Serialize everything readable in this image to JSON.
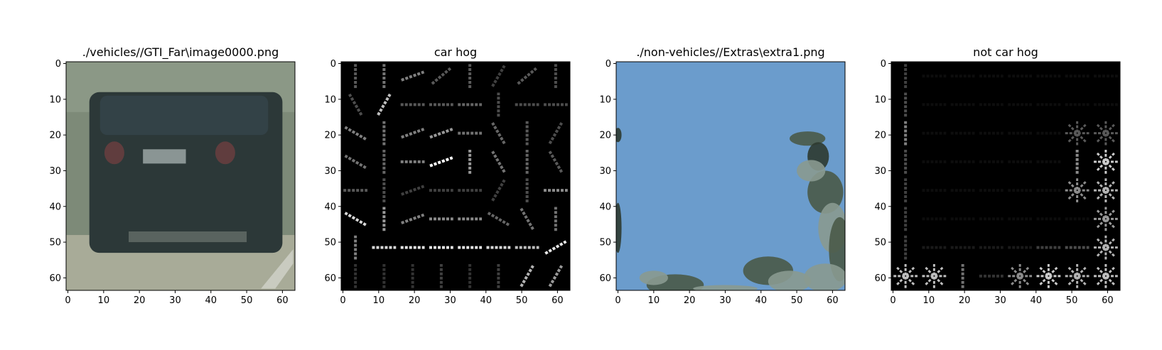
{
  "chart_data": [
    {
      "type": "heatmap",
      "subtype": "image",
      "title": "./vehicles//GTI_Far\\image0000.png",
      "xlim": [
        0,
        63
      ],
      "ylim": [
        63,
        0
      ],
      "xticks": [
        "0",
        "10",
        "20",
        "30",
        "40",
        "50",
        "60"
      ],
      "yticks": [
        "0",
        "10",
        "20",
        "30",
        "40",
        "50",
        "60"
      ],
      "image": {
        "kind": "photo-car",
        "colors": {
          "background": "#7d8a78",
          "sky": "#8f9b8a",
          "body": "#2c3838",
          "window": "#334247",
          "taillight": "#6a3e40",
          "plate": "#8a9594",
          "road": "#a8ab98",
          "shadow": "#3a4545"
        }
      }
    },
    {
      "type": "heatmap",
      "subtype": "hog",
      "title": "car hog",
      "xlim": [
        0,
        63
      ],
      "ylim": [
        63,
        0
      ],
      "xticks": [
        "0",
        "10",
        "20",
        "30",
        "40",
        "50",
        "60"
      ],
      "yticks": [
        "0",
        "10",
        "20",
        "30",
        "40",
        "50",
        "60"
      ],
      "cell_size": 8,
      "cells": [
        [
          [
            90,
            0.35
          ],
          [
            90,
            0.45
          ],
          [
            20,
            0.5
          ],
          [
            40,
            0.35
          ],
          [
            90,
            0.35
          ],
          [
            60,
            0.25
          ],
          [
            40,
            0.35
          ],
          [
            90,
            0.3
          ]
        ],
        [
          [
            120,
            0.3
          ],
          [
            60,
            0.75
          ],
          [
            0,
            0.35
          ],
          [
            0,
            0.35
          ],
          [
            0,
            0.4
          ],
          [
            90,
            0.3
          ],
          [
            0,
            0.3
          ],
          [
            0,
            0.3
          ]
        ],
        [
          [
            150,
            0.5
          ],
          [
            90,
            0.45
          ],
          [
            20,
            0.5
          ],
          [
            20,
            0.6
          ],
          [
            0,
            0.45
          ],
          [
            120,
            0.4
          ],
          [
            90,
            0.35
          ],
          [
            60,
            0.3
          ]
        ],
        [
          [
            150,
            0.45
          ],
          [
            90,
            0.4
          ],
          [
            0,
            0.5
          ],
          [
            20,
            1.0
          ],
          [
            90,
            0.6
          ],
          [
            120,
            0.45
          ],
          [
            90,
            0.4
          ],
          [
            120,
            0.35
          ]
        ],
        [
          [
            0,
            0.35
          ],
          [
            90,
            0.3
          ],
          [
            20,
            0.25
          ],
          [
            0,
            0.25
          ],
          [
            0,
            0.25
          ],
          [
            60,
            0.25
          ],
          [
            90,
            0.3
          ],
          [
            0,
            0.55
          ]
        ],
        [
          [
            150,
            0.85
          ],
          [
            90,
            0.6
          ],
          [
            20,
            0.5
          ],
          [
            0,
            0.55
          ],
          [
            0,
            0.55
          ],
          [
            150,
            0.4
          ],
          [
            120,
            0.45
          ],
          [
            90,
            0.45
          ]
        ],
        [
          [
            90,
            0.5
          ],
          [
            0,
            0.85
          ],
          [
            0,
            0.9
          ],
          [
            0,
            0.9
          ],
          [
            0,
            0.9
          ],
          [
            0,
            0.85
          ],
          [
            0,
            0.75
          ],
          [
            30,
            0.9
          ]
        ],
        [
          [
            90,
            0.2
          ],
          [
            90,
            0.2
          ],
          [
            90,
            0.2
          ],
          [
            90,
            0.25
          ],
          [
            90,
            0.2
          ],
          [
            90,
            0.25
          ],
          [
            60,
            0.7
          ],
          [
            60,
            0.6
          ]
        ]
      ]
    },
    {
      "type": "heatmap",
      "subtype": "image",
      "title": "./non-vehicles//Extras\\extra1.png",
      "xlim": [
        0,
        63
      ],
      "ylim": [
        63,
        0
      ],
      "xticks": [
        "0",
        "10",
        "20",
        "30",
        "40",
        "50",
        "60"
      ],
      "yticks": [
        "0",
        "10",
        "20",
        "30",
        "40",
        "50",
        "60"
      ],
      "image": {
        "kind": "photo-sky",
        "colors": {
          "sky": "#6b9ccc",
          "tree": "#4a5a48",
          "tree_light": "#8a9a90",
          "tree_dark": "#2e3a30"
        }
      }
    },
    {
      "type": "heatmap",
      "subtype": "hog",
      "title": "not car hog",
      "xlim": [
        0,
        63
      ],
      "ylim": [
        63,
        0
      ],
      "xticks": [
        "0",
        "10",
        "20",
        "30",
        "40",
        "50",
        "60"
      ],
      "yticks": [
        "0",
        "10",
        "20",
        "30",
        "40",
        "50",
        "60"
      ],
      "cell_size": 8,
      "cells": [
        [
          [
            90,
            0.25
          ],
          [
            0,
            0.05
          ],
          [
            0,
            0.05
          ],
          [
            0,
            0.05
          ],
          [
            0,
            0.05
          ],
          [
            0,
            0.05
          ],
          [
            0,
            0.05
          ],
          [
            0,
            0.05
          ]
        ],
        [
          [
            90,
            0.3
          ],
          [
            0,
            0.05
          ],
          [
            0,
            0.05
          ],
          [
            0,
            0.05
          ],
          [
            0,
            0.05
          ],
          [
            0,
            0.05
          ],
          [
            0,
            0.05
          ],
          [
            0,
            0.05
          ]
        ],
        [
          [
            90,
            0.5
          ],
          [
            0,
            0.05
          ],
          [
            0,
            0.05
          ],
          [
            0,
            0.05
          ],
          [
            0,
            0.05
          ],
          [
            0,
            0.05
          ],
          [
            "star",
            0.35
          ],
          [
            "star",
            0.35
          ]
        ],
        [
          [
            90,
            0.3
          ],
          [
            0,
            0.05
          ],
          [
            0,
            0.05
          ],
          [
            0,
            0.05
          ],
          [
            0,
            0.05
          ],
          [
            0,
            0.05
          ],
          [
            90,
            0.55
          ],
          [
            "star",
            0.8
          ]
        ],
        [
          [
            90,
            0.25
          ],
          [
            0,
            0.05
          ],
          [
            0,
            0.05
          ],
          [
            0,
            0.05
          ],
          [
            0,
            0.05
          ],
          [
            0,
            0.05
          ],
          [
            "star",
            0.55
          ],
          [
            "star",
            0.7
          ]
        ],
        [
          [
            90,
            0.25
          ],
          [
            0,
            0.05
          ],
          [
            0,
            0.05
          ],
          [
            0,
            0.05
          ],
          [
            0,
            0.05
          ],
          [
            0,
            0.05
          ],
          [
            0,
            0.05
          ],
          [
            "star",
            0.6
          ]
        ],
        [
          [
            90,
            0.25
          ],
          [
            0,
            0.1
          ],
          [
            0,
            0.1
          ],
          [
            0,
            0.1
          ],
          [
            0,
            0.1
          ],
          [
            0,
            0.25
          ],
          [
            0,
            0.3
          ],
          [
            "star",
            0.7
          ]
        ],
        [
          [
            "star",
            0.75
          ],
          [
            "star",
            0.75
          ],
          [
            90,
            0.45
          ],
          [
            0,
            0.2
          ],
          [
            "star",
            0.55
          ],
          [
            "star",
            0.8
          ],
          [
            "star",
            0.7
          ],
          [
            "star",
            0.75
          ]
        ]
      ]
    }
  ]
}
